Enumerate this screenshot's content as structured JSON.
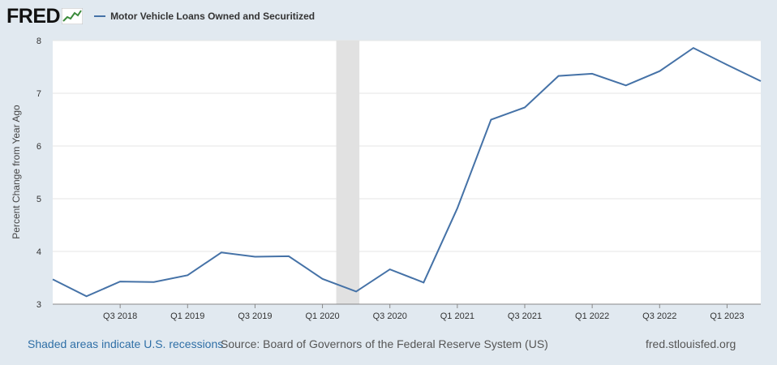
{
  "header": {
    "logo": "FRED",
    "legend_label": "Motor Vehicle Loans Owned and Securitized",
    "series_color": "#4572a7"
  },
  "footer": {
    "recession_note": "Shaded areas indicate U.S. recessions",
    "source": "Source: Board of Governors of the Federal Reserve System (US)",
    "url": "fred.stlouisfed.org"
  },
  "chart_data": {
    "type": "line",
    "ylabel": "Percent Change from Year Ago",
    "ylim": [
      3,
      8
    ],
    "yticks": [
      3,
      4,
      5,
      6,
      7,
      8
    ],
    "x_labels": [
      "Q3 2018",
      "Q1 2019",
      "Q3 2019",
      "Q1 2020",
      "Q3 2020",
      "Q1 2021",
      "Q3 2021",
      "Q1 2022",
      "Q3 2022",
      "Q1 2023"
    ],
    "x": [
      "Q1 2018",
      "Q2 2018",
      "Q3 2018",
      "Q4 2018",
      "Q1 2019",
      "Q2 2019",
      "Q3 2019",
      "Q4 2019",
      "Q1 2020",
      "Q2 2020",
      "Q3 2020",
      "Q4 2020",
      "Q1 2021",
      "Q2 2021",
      "Q3 2021",
      "Q4 2021",
      "Q1 2022",
      "Q2 2022",
      "Q3 2022",
      "Q4 2022",
      "Q1 2023",
      "Q2 2023"
    ],
    "series": [
      {
        "name": "Motor Vehicle Loans Owned and Securitized",
        "values": [
          3.47,
          3.15,
          3.43,
          3.42,
          3.55,
          3.98,
          3.9,
          3.91,
          3.48,
          3.24,
          3.66,
          3.41,
          4.82,
          6.5,
          6.73,
          7.33,
          7.37,
          7.15,
          7.42,
          7.86,
          7.54,
          7.23
        ]
      }
    ],
    "recession": {
      "start": "Q1 2020",
      "end": "Q2 2020"
    },
    "grid": true,
    "legend": "top-left"
  }
}
